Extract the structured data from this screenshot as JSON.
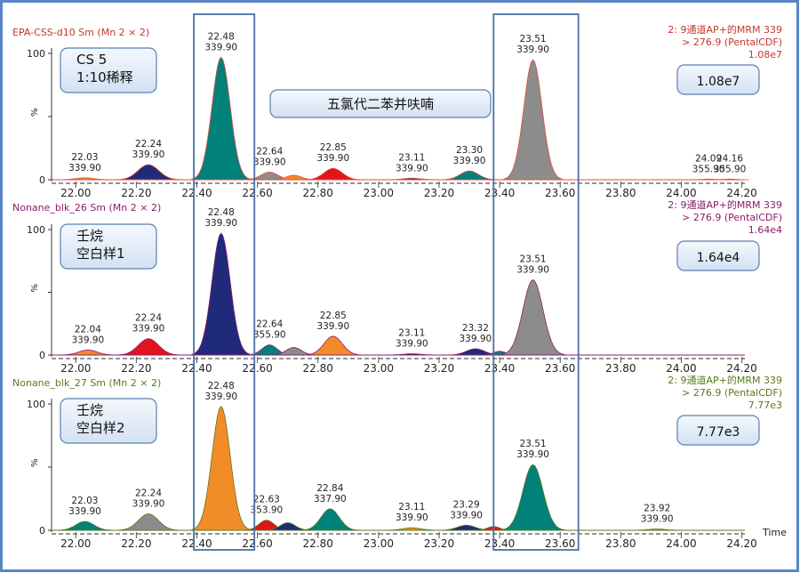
{
  "window": {
    "border_color": "#5b87c5"
  },
  "x_axis": {
    "min": 21.92,
    "max": 24.21,
    "ticks": [
      "22.00",
      "22.20",
      "22.40",
      "22.60",
      "22.80",
      "23.00",
      "23.20",
      "23.40",
      "23.60",
      "23.80",
      "24.00",
      "24.20"
    ],
    "unit_label": "Time"
  },
  "y_axis": {
    "ticks": [
      "0",
      "50",
      "100"
    ],
    "unit_label": "%"
  },
  "highlight_boxes": [
    {
      "x_range": [
        22.39,
        22.59
      ],
      "color": "#4a6fa5"
    },
    {
      "x_range": [
        23.38,
        23.66
      ],
      "color": "#4a6fa5"
    }
  ],
  "compound_label": "五氯代二苯并呋喃",
  "chart_data": [
    {
      "type": "area",
      "title": "EPA-CSS-d10 Sm (Mn 2 × 2)",
      "title_color": "#c0392b",
      "method": [
        "2: 9通道AP+的MRM 339",
        "> 276.9 (PentalCDF)",
        "1.08e7"
      ],
      "sample_label": [
        "CS 5",
        "1:10稀释"
      ],
      "intensity_box": "1.08e7",
      "trace_color": "#e74c3c",
      "ylim": [
        0,
        100
      ],
      "peaks": [
        {
          "rt": 22.03,
          "height": 1.5,
          "width": 0.03,
          "fill": "#f28c28",
          "labels": [
            "22.03",
            "339.90"
          ]
        },
        {
          "rt": 22.24,
          "height": 12,
          "width": 0.034,
          "fill": "#1f2a7a",
          "labels": [
            "22.24",
            "339.90"
          ]
        },
        {
          "rt": 22.48,
          "height": 97,
          "width": 0.03,
          "fill": "#00827a",
          "labels": [
            "22.48",
            "339.90"
          ]
        },
        {
          "rt": 22.64,
          "height": 6,
          "width": 0.028,
          "fill": "#8c8c8c",
          "labels": [
            "22.64",
            "339.90"
          ]
        },
        {
          "rt": 22.72,
          "height": 3.5,
          "width": 0.025,
          "fill": "#f28c28",
          "labels": []
        },
        {
          "rt": 22.85,
          "height": 9,
          "width": 0.03,
          "fill": "#e0141b",
          "labels": [
            "22.85",
            "339.90"
          ]
        },
        {
          "rt": 23.11,
          "height": 1.2,
          "width": 0.03,
          "fill": "#1f2a7a",
          "labels": [
            "23.11",
            "339.90"
          ]
        },
        {
          "rt": 23.3,
          "height": 7,
          "width": 0.03,
          "fill": "#00827a",
          "labels": [
            "23.30",
            "339.90"
          ]
        },
        {
          "rt": 23.51,
          "height": 95,
          "width": 0.03,
          "fill": "#8c8c8c",
          "labels": [
            "23.51",
            "339.90"
          ]
        },
        {
          "rt": 24.09,
          "height": 0.5,
          "width": 0.02,
          "fill": "#8c8c8c",
          "labels": [
            "24.09",
            "355.90"
          ]
        },
        {
          "rt": 24.16,
          "height": 0.5,
          "width": 0.02,
          "fill": "#8c8c8c",
          "labels": [
            "24.16",
            "355.90"
          ]
        }
      ]
    },
    {
      "type": "area",
      "title": "Nonane_blk_26 Sm (Mn 2 × 2)",
      "title_color": "#8e1b6c",
      "method": [
        "2: 9通道AP+的MRM 339",
        "> 276.9 (PentalCDF)",
        "1.64e4"
      ],
      "sample_label": [
        "壬烷",
        "空白样1"
      ],
      "intensity_box": "1.64e4",
      "trace_color": "#8e1b6c",
      "ylim": [
        0,
        100
      ],
      "peaks": [
        {
          "rt": 22.04,
          "height": 4,
          "width": 0.03,
          "fill": "#f28c28",
          "labels": [
            "22.04",
            "339.90"
          ]
        },
        {
          "rt": 22.24,
          "height": 13,
          "width": 0.033,
          "fill": "#e0141b",
          "labels": [
            "22.24",
            "339.90"
          ]
        },
        {
          "rt": 22.48,
          "height": 97,
          "width": 0.03,
          "fill": "#1f2a7a",
          "labels": [
            "22.48",
            "339.90"
          ]
        },
        {
          "rt": 22.64,
          "height": 8,
          "width": 0.025,
          "fill": "#00827a",
          "labels": [
            "22.64",
            "355.90"
          ]
        },
        {
          "rt": 22.72,
          "height": 6,
          "width": 0.025,
          "fill": "#8c8c8c",
          "labels": []
        },
        {
          "rt": 22.85,
          "height": 15,
          "width": 0.03,
          "fill": "#f28c28",
          "labels": [
            "22.85",
            "339.90"
          ]
        },
        {
          "rt": 23.11,
          "height": 1.0,
          "width": 0.03,
          "fill": "#1f2a7a",
          "labels": [
            "23.11",
            "339.90"
          ]
        },
        {
          "rt": 23.32,
          "height": 5,
          "width": 0.03,
          "fill": "#1f2a7a",
          "labels": [
            "23.32",
            "339.90"
          ]
        },
        {
          "rt": 23.4,
          "height": 3,
          "width": 0.02,
          "fill": "#00827a",
          "labels": []
        },
        {
          "rt": 23.51,
          "height": 60,
          "width": 0.033,
          "fill": "#8c8c8c",
          "labels": [
            "23.51",
            "339.90"
          ]
        }
      ]
    },
    {
      "type": "area",
      "title": "Nonane_blk_27 Sm (Mn 2 × 2)",
      "title_color": "#5a7a1a",
      "method": [
        "2: 9通道AP+的MRM 339",
        "> 276.9 (PentalCDF)",
        "7.77e3"
      ],
      "sample_label": [
        "壬烷",
        "空白样2"
      ],
      "intensity_box": "7.77e3",
      "trace_color": "#5a7a1a",
      "ylim": [
        0,
        100
      ],
      "peaks": [
        {
          "rt": 22.03,
          "height": 7,
          "width": 0.03,
          "fill": "#00827a",
          "labels": [
            "22.03",
            "339.90"
          ]
        },
        {
          "rt": 22.24,
          "height": 13,
          "width": 0.033,
          "fill": "#8c8c8c",
          "labels": [
            "22.24",
            "339.90"
          ]
        },
        {
          "rt": 22.48,
          "height": 98,
          "width": 0.03,
          "fill": "#f28c28",
          "labels": [
            "22.48",
            "339.90"
          ]
        },
        {
          "rt": 22.63,
          "height": 8,
          "width": 0.025,
          "fill": "#e0141b",
          "labels": [
            "22.63",
            "353.90"
          ]
        },
        {
          "rt": 22.7,
          "height": 6,
          "width": 0.025,
          "fill": "#1f2a7a",
          "labels": []
        },
        {
          "rt": 22.84,
          "height": 17,
          "width": 0.03,
          "fill": "#00827a",
          "labels": [
            "22.84",
            "337.90"
          ]
        },
        {
          "rt": 23.11,
          "height": 2,
          "width": 0.03,
          "fill": "#f28c28",
          "labels": [
            "23.11",
            "339.90"
          ]
        },
        {
          "rt": 23.29,
          "height": 4,
          "width": 0.03,
          "fill": "#1f2a7a",
          "labels": [
            "23.29",
            "339.90"
          ]
        },
        {
          "rt": 23.38,
          "height": 3,
          "width": 0.02,
          "fill": "#e0141b",
          "labels": []
        },
        {
          "rt": 23.51,
          "height": 52,
          "width": 0.033,
          "fill": "#00827a",
          "labels": [
            "23.51",
            "339.90"
          ]
        },
        {
          "rt": 23.92,
          "height": 1.0,
          "width": 0.03,
          "fill": "#8c8c8c",
          "labels": [
            "23.92",
            "339.90"
          ]
        }
      ]
    }
  ]
}
